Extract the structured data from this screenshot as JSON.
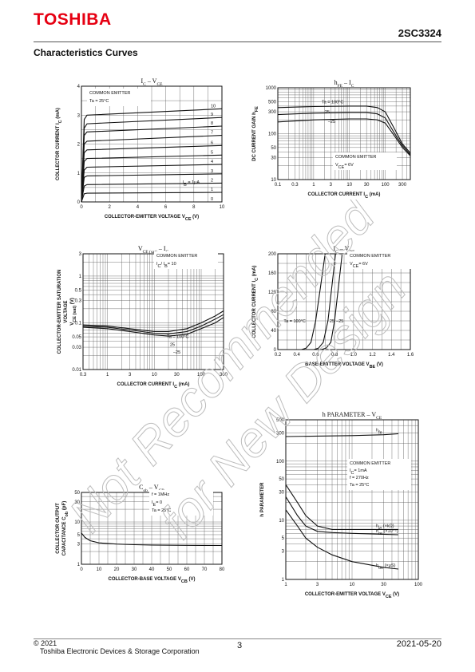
{
  "header": {
    "logo": "TOSHIBA",
    "part_number": "2SC3324",
    "section_title": "Characteristics Curves"
  },
  "footer": {
    "copyright": "© 2021",
    "company": "Toshiba Electronic Devices & Storage Corporation",
    "page": "3",
    "date": "2021-05-20"
  },
  "watermark": {
    "line1": "Not Recommended",
    "line2": "for New Design"
  },
  "colors": {
    "logo": "#e60012",
    "ink": "#111111",
    "grid": "#444444"
  },
  "chart_data": [
    {
      "id": "ic-vce",
      "type": "line",
      "title_main": "I",
      "title_sub": "C",
      "title_rest": " – V",
      "title_sub2": "CE",
      "xlabel": "COLLECTOR-EMITTER VOLTAGE   V",
      "xlabel_sub": "CE",
      "xlabel_unit": "   (V)",
      "ylabel": "COLLECTOR CURRENT   I",
      "ylabel_sub": "C",
      "ylabel_unit": "   (mA)",
      "xscale": "linear",
      "yscale": "linear",
      "xlim": [
        0,
        10
      ],
      "ylim": [
        0,
        4
      ],
      "xticks": [
        0,
        2,
        4,
        6,
        8,
        10
      ],
      "yticks": [
        0,
        1,
        2,
        3,
        4
      ],
      "condition_lines": [
        "COMMON EMITTER",
        "Ta = 25°C"
      ],
      "param_label": "I",
      "param_sub": "B",
      "param_rest": " = 1μA",
      "series": [
        {
          "name": "0",
          "points": [
            [
              0,
              0
            ],
            [
              10,
              0
            ]
          ]
        },
        {
          "name": "1",
          "points": [
            [
              0,
              0
            ],
            [
              0.2,
              0.28
            ],
            [
              0.4,
              0.3
            ],
            [
              10,
              0.33
            ]
          ]
        },
        {
          "name": "2",
          "points": [
            [
              0,
              0
            ],
            [
              0.2,
              0.55
            ],
            [
              0.4,
              0.6
            ],
            [
              10,
              0.65
            ]
          ]
        },
        {
          "name": "3",
          "points": [
            [
              0,
              0
            ],
            [
              0.2,
              0.85
            ],
            [
              0.4,
              0.9
            ],
            [
              10,
              0.97
            ]
          ]
        },
        {
          "name": "4",
          "points": [
            [
              0,
              0
            ],
            [
              0.2,
              1.1
            ],
            [
              0.4,
              1.2
            ],
            [
              10,
              1.3
            ]
          ]
        },
        {
          "name": "5",
          "points": [
            [
              0,
              0
            ],
            [
              0.2,
              1.4
            ],
            [
              0.4,
              1.5
            ],
            [
              10,
              1.62
            ]
          ]
        },
        {
          "name": "6",
          "points": [
            [
              0,
              0
            ],
            [
              0.2,
              1.7
            ],
            [
              0.4,
              1.8
            ],
            [
              10,
              1.95
            ]
          ]
        },
        {
          "name": "7",
          "points": [
            [
              0,
              0
            ],
            [
              0.2,
              2.0
            ],
            [
              0.4,
              2.1
            ],
            [
              10,
              2.3
            ]
          ]
        },
        {
          "name": "8",
          "points": [
            [
              0,
              0
            ],
            [
              0.2,
              2.3
            ],
            [
              0.4,
              2.42
            ],
            [
              10,
              2.62
            ]
          ]
        },
        {
          "name": "9",
          "points": [
            [
              0,
              0
            ],
            [
              0.2,
              2.55
            ],
            [
              0.4,
              2.7
            ],
            [
              10,
              2.92
            ]
          ]
        },
        {
          "name": "10",
          "points": [
            [
              0,
              0
            ],
            [
              0.2,
              2.85
            ],
            [
              0.4,
              3.0
            ],
            [
              10,
              3.22
            ]
          ]
        }
      ]
    },
    {
      "id": "hfe-ic",
      "type": "line",
      "title_main": "h",
      "title_sub": "FE",
      "title_rest": " – I",
      "title_sub2": "C",
      "xlabel": "COLLECTOR CURRENT   I",
      "xlabel_sub": "C",
      "xlabel_unit": "   (mA)",
      "ylabel": "DC CURRENT GAIN  h",
      "ylabel_sub": "FE",
      "ylabel_unit": "",
      "xscale": "log",
      "yscale": "log",
      "xlim": [
        0.1,
        500
      ],
      "ylim": [
        10,
        1000
      ],
      "xticks": [
        0.1,
        0.3,
        1,
        3,
        10,
        30,
        100,
        300
      ],
      "xtick_labels": [
        "0.1",
        "0.3",
        "1",
        "3",
        "10",
        "30",
        "100",
        "300"
      ],
      "yticks": [
        10,
        30,
        50,
        100,
        300,
        500,
        1000
      ],
      "ytick_labels": [
        "10",
        "30",
        "50",
        "100",
        "300",
        "500",
        "1000"
      ],
      "condition_lines": [
        "COMMON EMITTER",
        "V",
        "= 6V"
      ],
      "condition_sub": "CE",
      "series": [
        {
          "name": "Ta = 100°C",
          "points": [
            [
              0.1,
              370
            ],
            [
              1,
              390
            ],
            [
              10,
              400
            ],
            [
              30,
              400
            ],
            [
              60,
              370
            ],
            [
              100,
              300
            ],
            [
              200,
              110
            ],
            [
              300,
              60
            ],
            [
              500,
              38
            ]
          ]
        },
        {
          "name": "25",
          "points": [
            [
              0.1,
              260
            ],
            [
              1,
              280
            ],
            [
              10,
              290
            ],
            [
              30,
              290
            ],
            [
              60,
              270
            ],
            [
              100,
              220
            ],
            [
              200,
              90
            ],
            [
              300,
              55
            ],
            [
              500,
              35
            ]
          ]
        },
        {
          "name": "–25",
          "points": [
            [
              0.1,
              180
            ],
            [
              1,
              200
            ],
            [
              10,
              210
            ],
            [
              30,
              210
            ],
            [
              60,
              200
            ],
            [
              100,
              170
            ],
            [
              200,
              80
            ],
            [
              300,
              50
            ],
            [
              500,
              33
            ]
          ]
        }
      ]
    },
    {
      "id": "vcesat-ic",
      "type": "line",
      "title_main": "V",
      "title_sub": "CE (sat)",
      "title_rest": " – I",
      "title_sub2": "C",
      "xlabel": "COLLECTOR CURRENT   I",
      "xlabel_sub": "C",
      "xlabel_unit": "   (mA)",
      "ylabel": "COLLECTOR-EMITTER SATURATION",
      "ylabel2": "VOLTAGE",
      "ylabel3": "V",
      "ylabel3_sub": "CE (sat)",
      "ylabel3_unit": " (V)",
      "xscale": "log",
      "yscale": "log",
      "xlim": [
        0.3,
        300
      ],
      "ylim": [
        0.01,
        3
      ],
      "xticks": [
        0.3,
        1,
        3,
        10,
        30,
        100,
        300
      ],
      "xtick_labels": [
        "0.3",
        "1",
        "3",
        "10",
        "30",
        "100",
        "300"
      ],
      "yticks": [
        0.01,
        0.03,
        0.05,
        0.1,
        0.3,
        0.5,
        1,
        3
      ],
      "ytick_labels": [
        "0.01",
        "0.03",
        "0.05",
        "0.1",
        "0.3",
        "0.5",
        "1",
        "3"
      ],
      "condition_lines": [
        "COMMON EMITTER",
        "I",
        "/ I",
        "= 10"
      ],
      "condition_subs": [
        "C",
        "B"
      ],
      "series": [
        {
          "name": "Ta = 100°C",
          "points": [
            [
              0.3,
              0.09
            ],
            [
              1,
              0.085
            ],
            [
              3,
              0.075
            ],
            [
              10,
              0.065
            ],
            [
              20,
              0.065
            ],
            [
              50,
              0.075
            ],
            [
              100,
              0.1
            ],
            [
              200,
              0.14
            ],
            [
              300,
              0.18
            ]
          ]
        },
        {
          "name": "25",
          "points": [
            [
              0.3,
              0.085
            ],
            [
              1,
              0.08
            ],
            [
              3,
              0.07
            ],
            [
              10,
              0.06
            ],
            [
              20,
              0.058
            ],
            [
              50,
              0.065
            ],
            [
              100,
              0.085
            ],
            [
              200,
              0.12
            ],
            [
              300,
              0.15
            ]
          ]
        },
        {
          "name": "–25",
          "points": [
            [
              0.3,
              0.08
            ],
            [
              1,
              0.075
            ],
            [
              3,
              0.065
            ],
            [
              10,
              0.055
            ],
            [
              20,
              0.052
            ],
            [
              50,
              0.057
            ],
            [
              100,
              0.075
            ],
            [
              200,
              0.1
            ],
            [
              300,
              0.13
            ]
          ]
        }
      ]
    },
    {
      "id": "ic-vbe",
      "type": "line",
      "title_main": "I",
      "title_sub": "C",
      "title_rest": " – V",
      "title_sub2": "BE",
      "xlabel": "BASE-EMITTER VOLTAGE   V",
      "xlabel_sub": "BE",
      "xlabel_unit": "   (V)",
      "ylabel": "COLLECTOR CURRENT   I",
      "ylabel_sub": "C",
      "ylabel_unit": "   (mA)",
      "xscale": "linear",
      "yscale": "linear",
      "xlim": [
        0.2,
        1.6
      ],
      "ylim": [
        0,
        200
      ],
      "xticks": [
        0.2,
        0.4,
        0.6,
        0.8,
        1.0,
        1.2,
        1.4,
        1.6
      ],
      "xtick_labels": [
        "0.2",
        "0.4",
        "0.6",
        "0.8",
        "1.0",
        "1.2",
        "1.4",
        "1.6"
      ],
      "yticks": [
        0,
        40,
        80,
        120,
        160,
        200
      ],
      "ytick_labels": [
        "0",
        "40",
        "80",
        "120",
        "160",
        "200"
      ],
      "condition_lines": [
        "COMMON EMITTER",
        "V",
        "= 6V"
      ],
      "condition_sub": "CE",
      "series": [
        {
          "name": "Ta = 100°C",
          "points": [
            [
              0.45,
              0
            ],
            [
              0.5,
              3
            ],
            [
              0.55,
              15
            ],
            [
              0.6,
              60
            ],
            [
              0.65,
              130
            ],
            [
              0.7,
              200
            ]
          ]
        },
        {
          "name": "25",
          "points": [
            [
              0.58,
              0
            ],
            [
              0.63,
              3
            ],
            [
              0.68,
              15
            ],
            [
              0.73,
              60
            ],
            [
              0.77,
              130
            ],
            [
              0.81,
              200
            ]
          ]
        },
        {
          "name": "–25",
          "points": [
            [
              0.66,
              0
            ],
            [
              0.71,
              3
            ],
            [
              0.76,
              15
            ],
            [
              0.8,
              60
            ],
            [
              0.84,
              130
            ],
            [
              0.88,
              200
            ]
          ]
        }
      ]
    },
    {
      "id": "h-param-vce",
      "type": "line",
      "title_main": "h  PARAMETER – V",
      "title_sub": "CE",
      "title_rest": "",
      "title_sub2": "",
      "xlabel": "COLLECTOR-EMITTER VOLTAGE   V",
      "xlabel_sub": "CE",
      "xlabel_unit": "   (V)",
      "ylabel": "h  PARAMETER",
      "ylabel_sub": "",
      "ylabel_unit": "",
      "xscale": "log",
      "yscale": "log",
      "xlim": [
        1,
        100
      ],
      "ylim": [
        1,
        500
      ],
      "xticks": [
        1,
        3,
        10,
        30,
        100
      ],
      "xtick_labels": [
        "1",
        "3",
        "10",
        "30",
        "100"
      ],
      "yticks": [
        1,
        3,
        5,
        10,
        30,
        50,
        100,
        300,
        500
      ],
      "ytick_labels": [
        "1",
        "3",
        "5",
        "10",
        "30",
        "50",
        "100",
        "300",
        "500"
      ],
      "condition_lines": [
        "COMMON EMITTER",
        "I",
        "= 1mA",
        "f = 270Hz",
        "Ta = 25°C"
      ],
      "condition_sub": "C",
      "series": [
        {
          "name": "h",
          "sub": "fe",
          "unit": "",
          "points": [
            [
              1,
              260
            ],
            [
              3,
              265
            ],
            [
              10,
              270
            ],
            [
              30,
              280
            ],
            [
              50,
              290
            ]
          ]
        },
        {
          "name": "h",
          "sub": "ie",
          "unit": " (×kΩ)",
          "points": [
            [
              1,
              40
            ],
            [
              1.5,
              20
            ],
            [
              2,
              12
            ],
            [
              3,
              8
            ],
            [
              5,
              7
            ],
            [
              10,
              7
            ],
            [
              30,
              7
            ],
            [
              50,
              7
            ]
          ]
        },
        {
          "name": "h",
          "sub": "re",
          "unit": " (×10⁻⁵)",
          "points": [
            [
              1,
              25
            ],
            [
              1.5,
              12
            ],
            [
              2,
              8
            ],
            [
              3,
              6.5
            ],
            [
              5,
              6.2
            ],
            [
              10,
              6
            ],
            [
              30,
              5.8
            ],
            [
              50,
              5.7
            ]
          ]
        },
        {
          "name": "h",
          "sub": "oe",
          "unit": " (×μS)",
          "points": [
            [
              1,
              15
            ],
            [
              1.5,
              8
            ],
            [
              2,
              5
            ],
            [
              3,
              3.5
            ],
            [
              5,
              2.6
            ],
            [
              10,
              2
            ],
            [
              30,
              1.6
            ],
            [
              50,
              1.5
            ]
          ]
        }
      ]
    },
    {
      "id": "cob-vcb",
      "type": "line",
      "title_main": "C",
      "title_sub": "ob",
      "title_rest": " – V",
      "title_sub2": "CB",
      "xlabel": "COLLECTOR-BASE VOLTAGE   V",
      "xlabel_sub": "CB",
      "xlabel_unit": "   (V)",
      "ylabel": "COLLECTOR OUTPUT",
      "ylabel2": "CAPACITANCE   C",
      "ylabel2_sub": "ob",
      "ylabel2_unit": "   (pF)",
      "xscale": "linear",
      "yscale": "log",
      "xlim": [
        0,
        80
      ],
      "ylim": [
        1,
        50
      ],
      "xticks": [
        0,
        10,
        20,
        30,
        40,
        50,
        60,
        70,
        80
      ],
      "xtick_labels": [
        "0",
        "10",
        "20",
        "30",
        "40",
        "50",
        "60",
        "70",
        "80"
      ],
      "yticks": [
        1,
        3,
        5,
        10,
        30,
        50
      ],
      "ytick_labels": [
        "1",
        "3",
        "5",
        "10",
        "30",
        "50"
      ],
      "condition_lines": [
        "f = 1MHz",
        "I",
        "= 0",
        "Ta = 25°C"
      ],
      "condition_sub": "E",
      "series": [
        {
          "name": "Cob",
          "points": [
            [
              0,
              5.5
            ],
            [
              2,
              4.3
            ],
            [
              5,
              3.6
            ],
            [
              10,
              3.2
            ],
            [
              20,
              3.0
            ],
            [
              30,
              2.9
            ],
            [
              40,
              2.85
            ],
            [
              60,
              2.8
            ],
            [
              80,
              2.78
            ]
          ]
        }
      ]
    }
  ]
}
